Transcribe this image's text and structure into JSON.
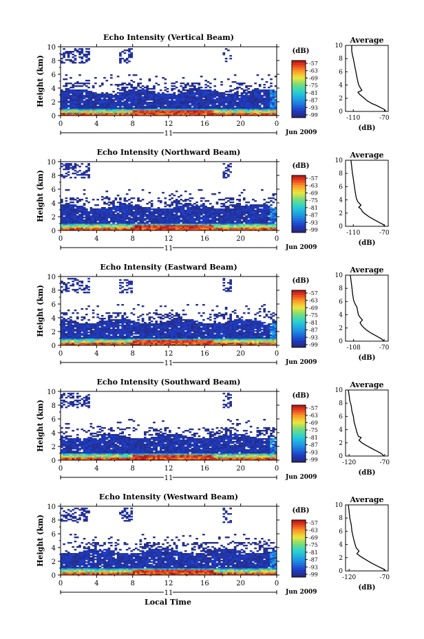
{
  "figure": {
    "bottom_label": "Local Time"
  },
  "chart_data": [
    {
      "type": "heatmap",
      "title": "Echo Intensity (Vertical Beam)",
      "ylabel": "Height (km)",
      "xlim": [
        0,
        24
      ],
      "ylim": [
        0,
        10
      ],
      "xticks": [
        "0",
        "4",
        "8",
        "12",
        "16",
        "20",
        "0"
      ],
      "yticks": [
        "0",
        "2",
        "4",
        "6",
        "8",
        "10"
      ],
      "date_label": "11",
      "month_label": "Jun 2009",
      "colorbar": {
        "unit": "(dB)",
        "range": [
          -99,
          -57
        ],
        "tick_labels": [
          "-57",
          "-63",
          "-69",
          "-75",
          "-81",
          "-87",
          "-93",
          "-99"
        ]
      },
      "profile": {
        "title": "Average",
        "xlabel": "(dB)",
        "xticks": [
          "-110",
          "-70"
        ],
        "xlim": [
          -120,
          -65
        ],
        "ylim": [
          0,
          10
        ],
        "points": [
          [
            -112,
            10
          ],
          [
            -112,
            9.2
          ],
          [
            -111,
            8.5
          ],
          [
            -110,
            8
          ],
          [
            -109,
            7.4
          ],
          [
            -108,
            6.8
          ],
          [
            -107,
            6.2
          ],
          [
            -106,
            5.6
          ],
          [
            -105,
            5
          ],
          [
            -104,
            4.5
          ],
          [
            -103,
            4
          ],
          [
            -101,
            3.6
          ],
          [
            -99,
            3.2
          ],
          [
            -104,
            2.9
          ],
          [
            -102,
            2.6
          ],
          [
            -99,
            2.3
          ],
          [
            -96,
            2
          ],
          [
            -92,
            1.6
          ],
          [
            -86,
            1.2
          ],
          [
            -80,
            0.9
          ],
          [
            -75,
            0.6
          ],
          [
            -70,
            0.3
          ],
          [
            -68,
            0
          ]
        ]
      }
    },
    {
      "type": "heatmap",
      "title": "Echo Intensity (Northward Beam)",
      "ylabel": "Height (km)",
      "xlim": [
        0,
        24
      ],
      "ylim": [
        0,
        10
      ],
      "xticks": [
        "0",
        "4",
        "8",
        "12",
        "16",
        "20",
        "0"
      ],
      "yticks": [
        "0",
        "2",
        "4",
        "6",
        "8",
        "10"
      ],
      "date_label": "11",
      "month_label": "Jun 2009",
      "colorbar": {
        "unit": "(dB)",
        "range": [
          -99,
          -57
        ],
        "tick_labels": [
          "-57",
          "-63",
          "-69",
          "-75",
          "-81",
          "-87",
          "-93",
          "-99"
        ]
      },
      "profile": {
        "title": "Average",
        "xlabel": "(dB)",
        "xticks": [
          "-110",
          "-70"
        ],
        "xlim": [
          -120,
          -65
        ],
        "ylim": [
          0,
          10
        ],
        "points": [
          [
            -113,
            10
          ],
          [
            -112,
            9
          ],
          [
            -111,
            8
          ],
          [
            -110,
            7.2
          ],
          [
            -109,
            6.4
          ],
          [
            -108,
            5.6
          ],
          [
            -107,
            4.8
          ],
          [
            -106,
            4.2
          ],
          [
            -104,
            3.7
          ],
          [
            -100,
            3.2
          ],
          [
            -103,
            2.9
          ],
          [
            -100,
            2.6
          ],
          [
            -98,
            2.2
          ],
          [
            -94,
            1.8
          ],
          [
            -89,
            1.4
          ],
          [
            -83,
            1
          ],
          [
            -77,
            0.6
          ],
          [
            -72,
            0.3
          ],
          [
            -69,
            0
          ]
        ]
      }
    },
    {
      "type": "heatmap",
      "title": "Echo Intensity (Eastward Beam)",
      "ylabel": "Height (km)",
      "xlim": [
        0,
        24
      ],
      "ylim": [
        0,
        10
      ],
      "xticks": [
        "0",
        "4",
        "8",
        "12",
        "16",
        "20",
        "0"
      ],
      "yticks": [
        "0",
        "2",
        "4",
        "6",
        "8",
        "10"
      ],
      "date_label": "11",
      "month_label": "Jun 2009",
      "colorbar": {
        "unit": "(dB)",
        "range": [
          -99,
          -57
        ],
        "tick_labels": [
          "-57",
          "-63",
          "-69",
          "-75",
          "-81",
          "-87",
          "-93",
          "-99"
        ]
      },
      "profile": {
        "title": "Average",
        "xlabel": "(dB)",
        "xticks": [
          "-108",
          "-70"
        ],
        "xlim": [
          -118,
          -65
        ],
        "ylim": [
          0,
          10
        ],
        "points": [
          [
            -112,
            10
          ],
          [
            -111,
            9
          ],
          [
            -110,
            8
          ],
          [
            -109,
            7
          ],
          [
            -108,
            6.2
          ],
          [
            -106,
            5.6
          ],
          [
            -104,
            5.2
          ],
          [
            -103,
            4.6
          ],
          [
            -102,
            4
          ],
          [
            -100,
            3.6
          ],
          [
            -97,
            3.2
          ],
          [
            -100,
            2.8
          ],
          [
            -98,
            2.4
          ],
          [
            -95,
            2
          ],
          [
            -91,
            1.6
          ],
          [
            -86,
            1.2
          ],
          [
            -80,
            0.8
          ],
          [
            -74,
            0.4
          ],
          [
            -70,
            0
          ]
        ]
      }
    },
    {
      "type": "heatmap",
      "title": "Echo Intensity (Southward Beam)",
      "ylabel": "Height (km)",
      "xlim": [
        0,
        24
      ],
      "ylim": [
        0,
        10
      ],
      "xticks": [
        "0",
        "4",
        "8",
        "12",
        "16",
        "20",
        "0"
      ],
      "yticks": [
        "0",
        "2",
        "4",
        "6",
        "8",
        "10"
      ],
      "date_label": "11",
      "month_label": "Jun 2009",
      "colorbar": {
        "unit": "(dB)",
        "range": [
          -99,
          -57
        ],
        "tick_labels": [
          "-57",
          "-63",
          "-69",
          "-75",
          "-81",
          "-87",
          "-93",
          "-99"
        ]
      },
      "profile": {
        "title": "Average",
        "xlabel": "(dB)",
        "xticks": [
          "-120",
          "-70"
        ],
        "xlim": [
          -125,
          -65
        ],
        "ylim": [
          0,
          10
        ],
        "points": [
          [
            -121,
            10
          ],
          [
            -120,
            9.2
          ],
          [
            -119,
            8.4
          ],
          [
            -117,
            7.6
          ],
          [
            -116,
            6.8
          ],
          [
            -114,
            6
          ],
          [
            -113,
            5.2
          ],
          [
            -111,
            4.4
          ],
          [
            -109,
            3.6
          ],
          [
            -107,
            3
          ],
          [
            -103,
            2.8
          ],
          [
            -106,
            2.4
          ],
          [
            -102,
            2
          ],
          [
            -96,
            1.6
          ],
          [
            -89,
            1.2
          ],
          [
            -82,
            0.8
          ],
          [
            -75,
            0.4
          ],
          [
            -71,
            0
          ]
        ]
      }
    },
    {
      "type": "heatmap",
      "title": "Echo Intensity (Westward Beam)",
      "ylabel": "Height (km)",
      "xlim": [
        0,
        24
      ],
      "ylim": [
        0,
        10
      ],
      "xticks": [
        "0",
        "4",
        "8",
        "12",
        "16",
        "20",
        "0"
      ],
      "yticks": [
        "0",
        "2",
        "4",
        "6",
        "8",
        "10"
      ],
      "date_label": "11",
      "month_label": "Jun 2009",
      "colorbar": {
        "unit": "(dB)",
        "range": [
          -99,
          -57
        ],
        "tick_labels": [
          "-57",
          "-63",
          "-69",
          "-75",
          "-81",
          "-87",
          "-93",
          "-99"
        ]
      },
      "profile": {
        "title": "Average",
        "xlabel": "(dB)",
        "xticks": [
          "-120",
          "-70"
        ],
        "xlim": [
          -125,
          -65
        ],
        "ylim": [
          0,
          10
        ],
        "points": [
          [
            -121,
            10
          ],
          [
            -120,
            9
          ],
          [
            -119,
            8
          ],
          [
            -117,
            7
          ],
          [
            -116,
            6
          ],
          [
            -114,
            5
          ],
          [
            -112,
            4.2
          ],
          [
            -110,
            3.5
          ],
          [
            -106,
            3
          ],
          [
            -109,
            2.6
          ],
          [
            -104,
            2.2
          ],
          [
            -98,
            1.8
          ],
          [
            -92,
            1.4
          ],
          [
            -85,
            1
          ],
          [
            -78,
            0.6
          ],
          [
            -72,
            0.3
          ],
          [
            -69,
            0
          ]
        ]
      }
    }
  ]
}
